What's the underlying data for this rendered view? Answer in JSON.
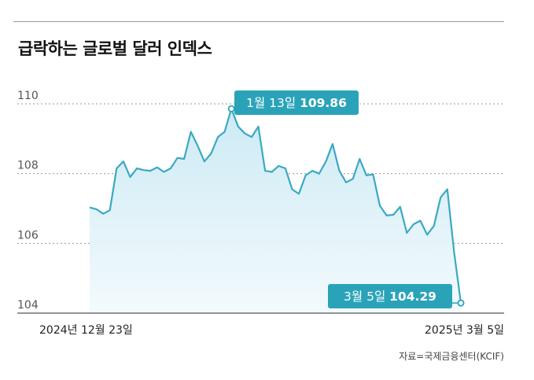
{
  "title": "급락하는 글로벌 달러 인덱스",
  "source": "자료=국제금융센터(KCIF)",
  "chart_data": {
    "type": "area",
    "title": "급락하는 글로벌 달러 인덱스",
    "xlabel": "",
    "ylabel": "",
    "ylim": [
      104,
      110
    ],
    "y_ticks": [
      110,
      108,
      106,
      104
    ],
    "y_tick_labels": [
      "110",
      "108",
      "106",
      "104"
    ],
    "x_tick_labels": [
      "2024년 12월 23일",
      "2025년 3월 5일"
    ],
    "grid": true,
    "series": [
      {
        "name": "달러 인덱스",
        "color": "#3aa9c2",
        "values": [
          107.03,
          106.98,
          106.85,
          106.95,
          108.15,
          108.35,
          107.9,
          108.15,
          108.1,
          108.08,
          108.18,
          108.05,
          108.15,
          108.45,
          108.42,
          109.2,
          108.8,
          108.35,
          108.58,
          109.05,
          109.2,
          109.86,
          109.35,
          109.15,
          109.05,
          109.35,
          108.08,
          108.05,
          108.22,
          108.15,
          107.55,
          107.42,
          107.95,
          108.08,
          108.0,
          108.35,
          108.85,
          108.08,
          107.75,
          107.85,
          108.42,
          107.95,
          107.98,
          107.08,
          106.8,
          106.82,
          107.05,
          106.3,
          106.55,
          106.65,
          106.25,
          106.5,
          107.32,
          107.55,
          105.75,
          104.29
        ]
      }
    ],
    "annotations": [
      {
        "label": "1월 13일",
        "value_text": "109.86",
        "index": 21,
        "value": 109.86
      },
      {
        "label": "3월 5일",
        "value_text": "104.29",
        "index": 55,
        "value": 104.29
      }
    ],
    "colors": {
      "line": "#3aa9c2",
      "fill_top": "#cdeaf4",
      "fill_bottom": "#f3fafd",
      "callout": "#2aa3b9",
      "grid": "#9a9a9a",
      "axis": "#555555"
    }
  }
}
